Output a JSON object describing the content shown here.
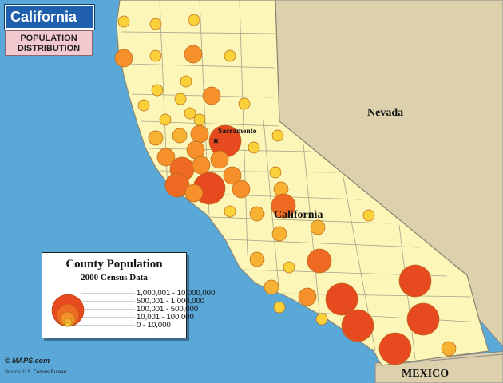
{
  "header": {
    "title": "California",
    "subtitle_line1": "POPULATION",
    "subtitle_line2": "DISTRIBUTION"
  },
  "labels": {
    "nevada": "Nevada",
    "california": "California",
    "sacramento": "Sacramento",
    "mexico": "MEXICO"
  },
  "legend": {
    "title": "County Population",
    "subtitle": "2000 Census Data",
    "classes": [
      {
        "label": "1,000,001 - 10,000,000",
        "color": "#e64a1e"
      },
      {
        "label": "500,001 - 1,000,000",
        "color": "#ee6a22"
      },
      {
        "label": "100,001 - 500,000",
        "color": "#f5902a"
      },
      {
        "label": "10,001 - 100,000",
        "color": "#f8b233"
      },
      {
        "label": "0 - 10,000",
        "color": "#fbd13a"
      }
    ]
  },
  "credits": {
    "logo": "© MAPS.com",
    "source": "Source: U.S. Census Bureau"
  },
  "colors": {
    "ocean": "#5aa8d8",
    "california": "#fdf6b9",
    "neighbor": "#dcd0ad",
    "county_border": "#a8a488"
  }
}
